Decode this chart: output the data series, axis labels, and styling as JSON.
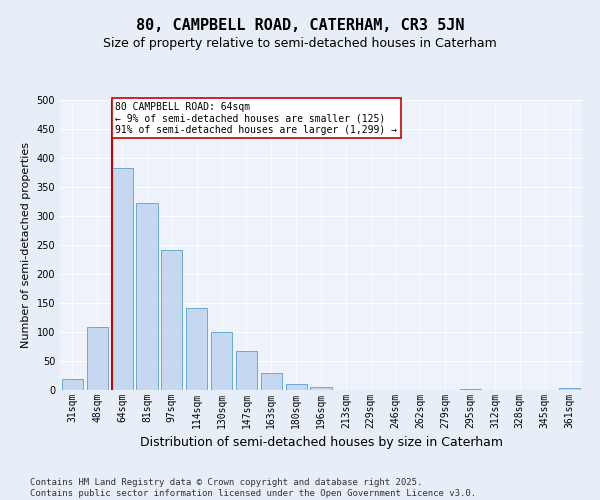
{
  "title": "80, CAMPBELL ROAD, CATERHAM, CR3 5JN",
  "subtitle": "Size of property relative to semi-detached houses in Caterham",
  "xlabel": "Distribution of semi-detached houses by size in Caterham",
  "ylabel": "Number of semi-detached properties",
  "categories": [
    "31sqm",
    "48sqm",
    "64sqm",
    "81sqm",
    "97sqm",
    "114sqm",
    "130sqm",
    "147sqm",
    "163sqm",
    "180sqm",
    "196sqm",
    "213sqm",
    "229sqm",
    "246sqm",
    "262sqm",
    "279sqm",
    "295sqm",
    "312sqm",
    "328sqm",
    "345sqm",
    "361sqm"
  ],
  "values": [
    19,
    108,
    383,
    323,
    241,
    141,
    100,
    68,
    29,
    10,
    6,
    0,
    0,
    0,
    0,
    0,
    2,
    0,
    0,
    0,
    3
  ],
  "bar_color": "#c5d8f0",
  "bar_edge_color": "#6aaad4",
  "vline_index": 2,
  "vline_color": "#cc0000",
  "annotation_text": "80 CAMPBELL ROAD: 64sqm\n← 9% of semi-detached houses are smaller (125)\n91% of semi-detached houses are larger (1,299) →",
  "annotation_box_color": "#ffffff",
  "annotation_box_edge": "#cc0000",
  "footer": "Contains HM Land Registry data © Crown copyright and database right 2025.\nContains public sector information licensed under the Open Government Licence v3.0.",
  "ylim": [
    0,
    500
  ],
  "yticks": [
    0,
    50,
    100,
    150,
    200,
    250,
    300,
    350,
    400,
    450,
    500
  ],
  "bg_color": "#e8eef7",
  "plot_bg": "#eef2fa",
  "title_fontsize": 11,
  "subtitle_fontsize": 9,
  "footer_fontsize": 6.5,
  "ylabel_fontsize": 8,
  "xlabel_fontsize": 9,
  "tick_fontsize": 7
}
